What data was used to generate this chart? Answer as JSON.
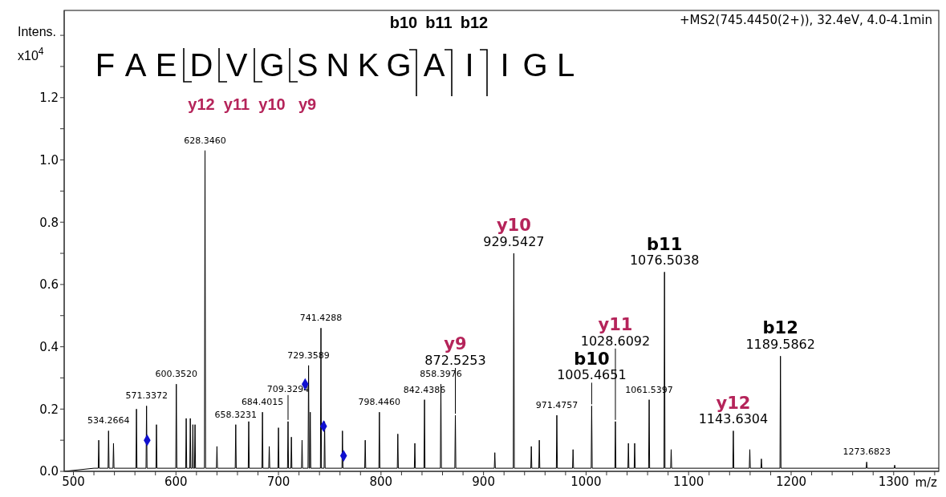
{
  "chart_data": {
    "type": "line",
    "title": "+MS2(745.4450(2+)), 32.4eV, 4.0-4.1min",
    "subtitle": "F A E D V G S N K G A I I G L",
    "xlabel": "m/z",
    "ylabel": "Intens. x10$^{4}$",
    "xlim": [
      491,
      1344
    ],
    "ylim": [
      0,
      1.48
    ],
    "xticks": [
      500,
      {
        "value": 520,
        "label": null
      },
      {
        "value": 540,
        "label": null
      },
      {
        "value": 560,
        "label": null
      },
      {
        "value": 580,
        "label": null
      },
      600,
      {
        "value": 620,
        "label": null
      },
      {
        "value": 640,
        "label": null
      },
      {
        "value": 660,
        "label": null
      },
      {
        "value": 680,
        "label": null
      },
      700,
      {
        "value": 720,
        "label": null
      },
      {
        "value": 740,
        "label": null
      },
      {
        "value": 760,
        "label": null
      },
      {
        "value": 780,
        "label": null
      },
      800,
      {
        "value": 820,
        "label": null
      },
      {
        "value": 840,
        "label": null
      },
      {
        "value": 860,
        "label": null
      },
      {
        "value": 880,
        "label": null
      },
      900,
      {
        "value": 920,
        "label": null
      },
      {
        "value": 940,
        "label": null
      },
      {
        "value": 960,
        "label": null
      },
      {
        "value": 980,
        "label": null
      },
      1000,
      {
        "value": 1020,
        "label": null
      },
      {
        "value": 1040,
        "label": null
      },
      {
        "value": 1060,
        "label": null
      },
      {
        "value": 1080,
        "label": null
      },
      1100,
      {
        "value": 1120,
        "label": null
      },
      {
        "value": 1140,
        "label": null
      },
      {
        "value": 1160,
        "label": null
      },
      {
        "value": 1180,
        "label": null
      },
      1200,
      {
        "value": 1220,
        "label": null
      },
      {
        "value": 1240,
        "label": null
      },
      {
        "value": 1260,
        "label": null
      },
      {
        "value": 1280,
        "label": null
      },
      1300,
      {
        "value": 1320,
        "label": null
      },
      {
        "value": 1340,
        "label": null
      }
    ],
    "yticks": [
      {
        "value": 0,
        "label": "0.0"
      },
      {
        "value": 0.1,
        "label": null
      },
      {
        "value": 0.2,
        "label": "0.2"
      },
      {
        "value": 0.3,
        "label": null
      },
      {
        "value": 0.4,
        "label": "0.4"
      },
      {
        "value": 0.5,
        "label": null
      },
      {
        "value": 0.6,
        "label": "0.6"
      },
      {
        "value": 0.7,
        "label": null
      },
      {
        "value": 0.8,
        "label": "0.8"
      },
      {
        "value": 0.9,
        "label": null
      },
      {
        "value": 1.0,
        "label": "1.0"
      },
      {
        "value": 1.1,
        "label": null
      },
      {
        "value": 1.2,
        "label": "1.2"
      },
      {
        "value": 1.3,
        "label": null
      },
      {
        "value": 1.4,
        "label": null
      }
    ],
    "series": [
      {
        "color": "#000000",
        "marker": "none",
        "line_style": "solid",
        "x": [
          491,
          520,
          524.2,
          524.7,
          525.2,
          533.8,
          534.2664,
          534.8,
          538.6,
          539.1,
          539.6,
          561,
          561.5,
          562,
          570.8,
          571.3372,
          571.8,
          580.5,
          581,
          581.5,
          599.8,
          600.352,
          600.9,
          609.5,
          610,
          610.5,
          613.5,
          614,
          614.5,
          616,
          616.5,
          617,
          618.1,
          618.6,
          619.1,
          627.8,
          628.346,
          628.9,
          639.5,
          640,
          640.5,
          657.8,
          658.3231,
          658.8,
          670.5,
          671,
          671.5,
          683.9,
          684.4015,
          684.9,
          690.5,
          691,
          691.5,
          699.5,
          700,
          700.5,
          708.8,
          709.3294,
          709.8,
          712.1,
          712.6,
          713.1,
          722.5,
          723,
          723.5,
          728.8,
          729.3589,
          729.9,
          730.5,
          731,
          731.5,
          740.9,
          741.4288,
          741.9,
          744.5,
          745,
          745.5,
          761.9,
          762.4,
          762.9,
          784.1,
          784.6,
          785.1,
          797.9,
          798.446,
          798.9,
          815.9,
          816.4,
          816.9,
          832.5,
          833,
          833.5,
          841.9,
          842.4386,
          842.9,
          857.9,
          858.3976,
          858.9,
          872,
          872.5253,
          873,
          910.5,
          911,
          911.5,
          929,
          929.5427,
          930,
          946.1,
          946.6,
          947.1,
          953.9,
          954.4,
          954.9,
          971,
          971.4757,
          972,
          986.8,
          987.3,
          987.8,
          1005,
          1005.4651,
          1006,
          1028.1,
          1028.6092,
          1029.1,
          1040.8,
          1041.3,
          1041.8,
          1046.9,
          1047.4,
          1047.9,
          1061,
          1061.5397,
          1062,
          1076,
          1076.5038,
          1077,
          1082.5,
          1083,
          1083.5,
          1143.1,
          1143.6304,
          1144.1,
          1159.2,
          1159.7,
          1160.2,
          1170.5,
          1171,
          1171.5,
          1189.1,
          1189.5862,
          1190.1,
          1273.2,
          1273.6823,
          1274.2,
          1300.5,
          1301,
          1301.5,
          1344
        ],
        "values": [
          0,
          0.01,
          0.01,
          0.1,
          0.01,
          0.01,
          0.13,
          0.01,
          0.01,
          0.09,
          0.01,
          0.01,
          0.2,
          0.01,
          0.01,
          0.21,
          0.01,
          0.01,
          0.15,
          0.01,
          0.01,
          0.28,
          0.01,
          0.01,
          0.17,
          0.01,
          0.01,
          0.17,
          0.01,
          0.01,
          0.15,
          0.01,
          0.01,
          0.15,
          0.01,
          0.01,
          1.03,
          0.01,
          0.01,
          0.08,
          0.01,
          0.01,
          0.15,
          0.01,
          0.01,
          0.16,
          0.01,
          0.01,
          0.19,
          0.01,
          0.01,
          0.08,
          0.01,
          0.01,
          0.14,
          0.01,
          0.01,
          0.16,
          0.01,
          0.01,
          0.11,
          0.01,
          0.01,
          0.1,
          0.01,
          0.01,
          0.34,
          0.01,
          0.01,
          0.19,
          0.01,
          0.01,
          0.46,
          0.01,
          0.01,
          0.16,
          0.01,
          0.01,
          0.13,
          0.01,
          0.01,
          0.1,
          0.01,
          0.01,
          0.19,
          0.01,
          0.01,
          0.12,
          0.01,
          0.01,
          0.09,
          0.01,
          0.01,
          0.23,
          0.01,
          0.01,
          0.28,
          0.01,
          0.01,
          0.18,
          0.01,
          0.01,
          0.06,
          0.01,
          0.01,
          0.7,
          0.01,
          0.01,
          0.08,
          0.01,
          0.01,
          0.1,
          0.01,
          0.01,
          0.18,
          0.01,
          0.01,
          0.07,
          0.01,
          0.01,
          0.21,
          0.01,
          0.01,
          0.16,
          0.01,
          0.01,
          0.09,
          0.01,
          0.01,
          0.09,
          0.01,
          0.01,
          0.23,
          0.01,
          0.01,
          0.64,
          0.01,
          0.01,
          0.07,
          0.01,
          0.01,
          0.13,
          0.01,
          0.01,
          0.07,
          0.01,
          0.01,
          0.04,
          0.01,
          0.01,
          0.37,
          0.01,
          0.01,
          0.03,
          0.01,
          0.01,
          0.02,
          0.01,
          0.01
        ]
      },
      {
        "type": "scatter",
        "color": "#1010d0",
        "marker": "diamond",
        "x": [
          571.9,
          726,
          744,
          763.5
        ],
        "values": [
          0.1,
          0.28,
          0.145,
          0.05
        ]
      }
    ],
    "annotations": [
      "y12",
      "y11",
      "y10",
      "y9",
      "b10",
      "b11",
      "b12",
      {
        "text": "534.2664",
        "x": 534.2664,
        "y": 0.13
      },
      {
        "text": "571.3372",
        "x": 571.3372,
        "y": 0.21
      },
      {
        "text": "600.3520",
        "x": 600.352,
        "y": 0.28
      },
      {
        "text": "628.3460",
        "x": 628.346,
        "y": 1.03
      },
      {
        "text": "658.3231",
        "x": 658.3231,
        "y": 0.15
      },
      {
        "text": "684.4015",
        "x": 684.4015,
        "y": 0.19
      },
      {
        "text": "709.3294",
        "x": 709.3294,
        "y": 0.16
      },
      {
        "text": "729.3589",
        "x": 729.3589,
        "y": 0.34
      },
      {
        "text": "741.4288",
        "x": 741.4288,
        "y": 0.46
      },
      {
        "text": "798.4460",
        "x": 798.446,
        "y": 0.19
      },
      {
        "text": "842.4386",
        "x": 842.4386,
        "y": 0.23
      },
      {
        "text": "858.3976",
        "x": 858.3976,
        "y": 0.28
      },
      {
        "text": "872.5253",
        "x": 872.5253,
        "y": 0.18
      },
      {
        "text": "y9",
        "x": 872.5253,
        "y": 0.18
      },
      {
        "text": "929.5427",
        "x": 929.5427,
        "y": 0.7
      },
      {
        "text": "y10",
        "x": 929.5427,
        "y": 0.7
      },
      {
        "text": "971.4757",
        "x": 971.4757,
        "y": 0.18
      },
      {
        "text": "1005.4651",
        "x": 1005.4651,
        "y": 0.21
      },
      {
        "text": "b10",
        "x": 1005.4651,
        "y": 0.21
      },
      {
        "text": "1028.6092",
        "x": 1028.6092,
        "y": 0.16
      },
      {
        "text": "y11",
        "x": 1028.6092,
        "y": 0.16
      },
      {
        "text": "1061.5397",
        "x": 1061.5397,
        "y": 0.23
      },
      {
        "text": "1076.5038",
        "x": 1076.5038,
        "y": 0.64
      },
      {
        "text": "b11",
        "x": 1076.5038,
        "y": 0.64
      },
      {
        "text": "1143.6304",
        "x": 1143.6304,
        "y": 0.13
      },
      {
        "text": "y12",
        "x": 1143.6304,
        "y": 0.13
      },
      {
        "text": "1189.5862",
        "x": 1189.5862,
        "y": 0.37
      },
      {
        "text": "b12",
        "x": 1189.5862,
        "y": 0.37
      },
      {
        "text": "1273.6823",
        "x": 1273.6823,
        "y": 0.03
      }
    ]
  }
}
